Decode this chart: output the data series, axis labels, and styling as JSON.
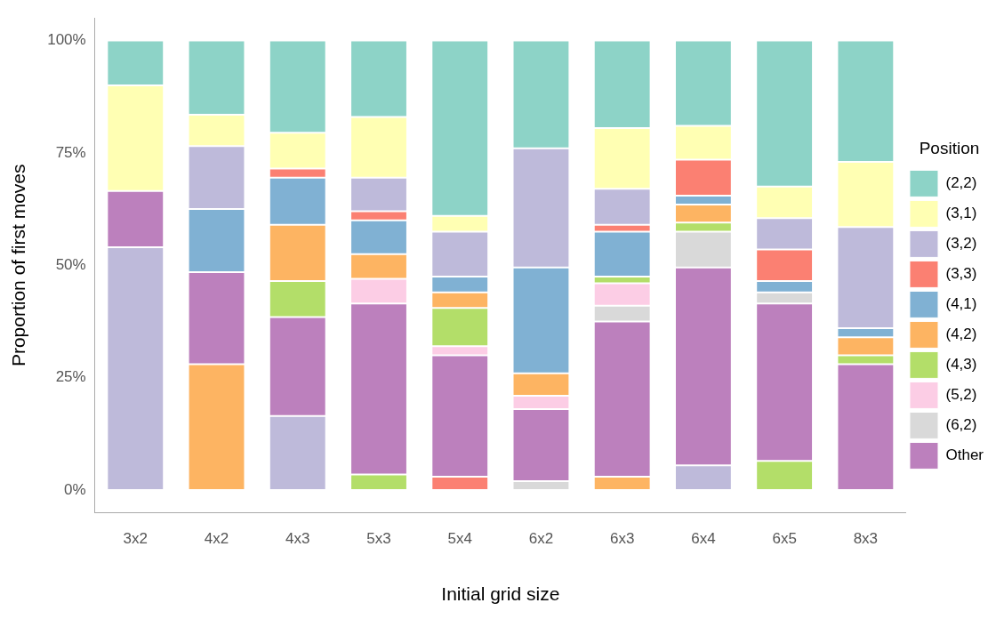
{
  "chart_data": {
    "type": "bar",
    "stacked": true,
    "xlabel": "Initial grid size",
    "ylabel": "Proportion of first moves",
    "legend_title": "Position",
    "categories": [
      "3x2",
      "4x2",
      "4x3",
      "5x3",
      "5x4",
      "6x2",
      "6x3",
      "6x4",
      "6x5",
      "8x3"
    ],
    "ylim": [
      -5,
      105
    ],
    "yticks": [
      {
        "value": 0,
        "label": "0%"
      },
      {
        "value": 25,
        "label": "25%"
      },
      {
        "value": 50,
        "label": "50%"
      },
      {
        "value": 75,
        "label": "75%"
      },
      {
        "value": 100,
        "label": "100%"
      }
    ],
    "grid": false,
    "legend": "right",
    "series": [
      {
        "colors": [
          "#bebada",
          "#fdb462",
          "#bebada",
          "#b3de69",
          "#fb8072",
          "#d9d9d9",
          "#fdb462",
          "#bebada",
          "#b3de69",
          "#bc80bd"
        ],
        "values": [
          54,
          28,
          16.5,
          3.5,
          3,
          2,
          3,
          5.5,
          6.5,
          null
        ]
      },
      {
        "name": "Other",
        "color": "#bc80bd",
        "values": [
          12.5,
          20.5,
          22,
          38,
          27,
          16,
          34.5,
          44,
          35,
          28
        ]
      },
      {
        "name": "(6,2)",
        "color": "#d9d9d9",
        "values": [
          0,
          0,
          0,
          0,
          0,
          0,
          3.5,
          8,
          2.5,
          0
        ]
      },
      {
        "name": "(5,2)",
        "color": "#fccde5",
        "values": [
          0,
          0,
          0,
          5.5,
          2,
          3,
          5,
          0,
          0,
          0
        ]
      },
      {
        "name": "(4,3)",
        "color": "#b3de69",
        "values": [
          0,
          0,
          8,
          0,
          8.5,
          0,
          1.5,
          2,
          0,
          2
        ]
      },
      {
        "name": "(4,2)",
        "color": "#fdb462",
        "values": [
          0,
          0,
          12.5,
          5.5,
          3.5,
          5,
          0,
          4,
          0,
          4
        ]
      },
      {
        "name": "(4,1)",
        "color": "#80b1d3",
        "values": [
          0,
          14,
          10.5,
          7.5,
          3.5,
          23.5,
          10,
          2,
          2.5,
          2
        ]
      },
      {
        "name": "(3,3)",
        "color": "#fb8072",
        "values": [
          0,
          0,
          2,
          2,
          0,
          0,
          1.5,
          8,
          7,
          0
        ]
      },
      {
        "name": "(3,2)",
        "color": "#bebada",
        "values": [
          0,
          14,
          0,
          7.5,
          10,
          26.5,
          8,
          0,
          7,
          22.5
        ]
      },
      {
        "name": "(3,1)",
        "color": "#ffffb3",
        "values": [
          23.5,
          7,
          8,
          13.5,
          3.5,
          0,
          13.5,
          7.5,
          7,
          14.5
        ]
      },
      {
        "name": "(2,2)",
        "color": "#8dd3c7",
        "values": [
          10,
          16.5,
          20.5,
          17,
          39,
          24,
          19.5,
          19,
          32.5,
          27
        ]
      }
    ]
  }
}
